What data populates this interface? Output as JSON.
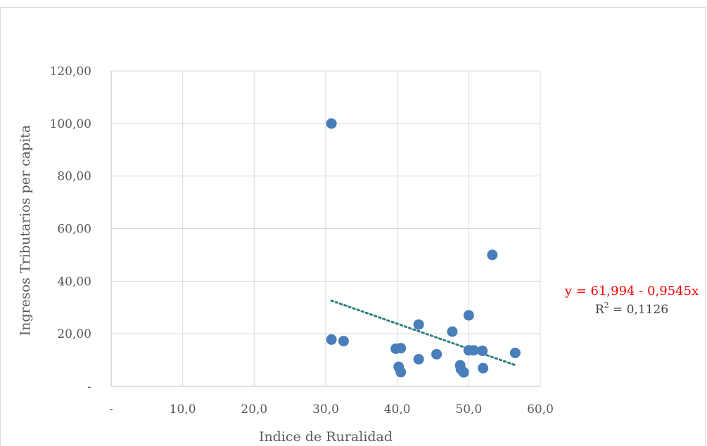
{
  "chart_data": {
    "type": "scatter",
    "xlabel": "Indice de Ruralidad",
    "ylabel": "Ingresos Tributarios  per capita",
    "xlim": [
      0,
      60
    ],
    "ylim": [
      0,
      120
    ],
    "x_ticks": [
      0,
      10,
      20,
      30,
      40,
      50,
      60
    ],
    "x_tick_labels": [
      "-",
      "10,0",
      "20,0",
      "30,0",
      "40,0",
      "50,0",
      "60,0"
    ],
    "y_ticks": [
      0,
      20,
      40,
      60,
      80,
      100,
      120
    ],
    "y_tick_labels": [
      "-",
      "20,00",
      "40,00",
      "60,00",
      "80,00",
      "100,00",
      "120,00"
    ],
    "grid": true,
    "series": [
      {
        "marker_color": "#4a7ebb",
        "points": [
          {
            "x": 30.8,
            "y": 100.0
          },
          {
            "x": 53.3,
            "y": 50.0
          },
          {
            "x": 30.8,
            "y": 17.8
          },
          {
            "x": 32.5,
            "y": 17.2
          },
          {
            "x": 39.8,
            "y": 14.3
          },
          {
            "x": 40.5,
            "y": 14.5
          },
          {
            "x": 40.2,
            "y": 7.4
          },
          {
            "x": 40.5,
            "y": 5.4
          },
          {
            "x": 43.0,
            "y": 23.5
          },
          {
            "x": 43.0,
            "y": 10.3
          },
          {
            "x": 45.5,
            "y": 12.2
          },
          {
            "x": 47.7,
            "y": 20.8
          },
          {
            "x": 48.8,
            "y": 8.0
          },
          {
            "x": 48.9,
            "y": 6.5
          },
          {
            "x": 49.3,
            "y": 5.3
          },
          {
            "x": 50.0,
            "y": 27.0
          },
          {
            "x": 50.0,
            "y": 13.7
          },
          {
            "x": 50.7,
            "y": 13.7
          },
          {
            "x": 51.9,
            "y": 13.5
          },
          {
            "x": 52.0,
            "y": 6.9
          },
          {
            "x": 56.5,
            "y": 12.7
          }
        ]
      }
    ],
    "trendline": {
      "intercept": 61.994,
      "slope": -0.9545,
      "x_range": [
        30.8,
        56.5
      ],
      "color": "#2e7f7f",
      "equation": "y = 61,994 - 0,9545x",
      "equation_color": "#ff0000",
      "r2_base": "R",
      "r2_sup": "2",
      "r2_value": " = 0,1126"
    }
  }
}
